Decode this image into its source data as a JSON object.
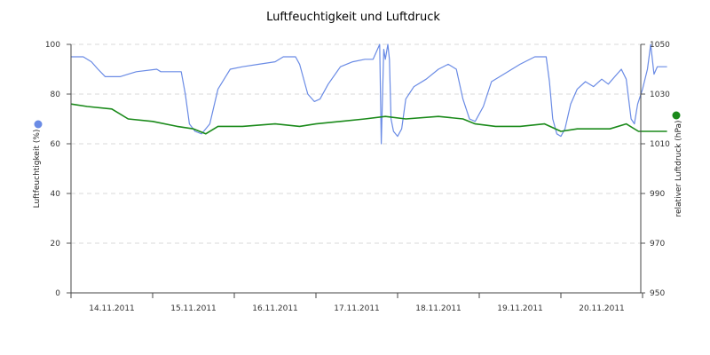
{
  "chart_data": {
    "type": "line",
    "title": "Luftfeuchtigkeit und Luftdruck",
    "x_tick_labels": [
      "14.11.2011",
      "15.11.2011",
      "16.11.2011",
      "17.11.2011",
      "18.11.2011",
      "19.11.2011",
      "20.11.2011"
    ],
    "x_range_days": [
      0,
      7
    ],
    "y_left": {
      "label": "Luftfeuchtigkeit (%)",
      "range": [
        0,
        100
      ],
      "ticks": [
        0,
        20,
        40,
        60,
        80,
        100
      ]
    },
    "y_right": {
      "label": "relativer Luftdruck (hPa)",
      "range": [
        950,
        1050
      ],
      "ticks": [
        950,
        970,
        990,
        1010,
        1030,
        1050
      ]
    },
    "grid": true,
    "series": [
      {
        "axis": "left",
        "color": "#6a8be5",
        "points": [
          [
            0.0,
            95
          ],
          [
            0.15,
            95
          ],
          [
            0.25,
            93
          ],
          [
            0.33,
            90
          ],
          [
            0.42,
            87
          ],
          [
            0.6,
            87
          ],
          [
            0.7,
            88
          ],
          [
            0.8,
            89
          ],
          [
            1.05,
            90
          ],
          [
            1.1,
            89
          ],
          [
            1.35,
            89
          ],
          [
            1.4,
            80
          ],
          [
            1.45,
            68
          ],
          [
            1.52,
            65
          ],
          [
            1.6,
            64
          ],
          [
            1.7,
            68
          ],
          [
            1.8,
            82
          ],
          [
            1.95,
            90
          ],
          [
            2.1,
            91
          ],
          [
            2.3,
            92
          ],
          [
            2.5,
            93
          ],
          [
            2.6,
            95
          ],
          [
            2.75,
            95
          ],
          [
            2.8,
            92
          ],
          [
            2.9,
            80
          ],
          [
            2.98,
            77
          ],
          [
            3.05,
            78
          ],
          [
            3.15,
            84
          ],
          [
            3.3,
            91
          ],
          [
            3.45,
            93
          ],
          [
            3.6,
            94
          ],
          [
            3.7,
            94
          ],
          [
            3.78,
            100
          ],
          [
            3.8,
            60
          ],
          [
            3.83,
            98
          ],
          [
            3.85,
            94
          ],
          [
            3.88,
            100
          ],
          [
            3.9,
            94
          ],
          [
            3.92,
            70
          ],
          [
            3.95,
            65
          ],
          [
            4.0,
            63
          ],
          [
            4.05,
            66
          ],
          [
            4.1,
            78
          ],
          [
            4.2,
            83
          ],
          [
            4.35,
            86
          ],
          [
            4.5,
            90
          ],
          [
            4.62,
            92
          ],
          [
            4.72,
            90
          ],
          [
            4.8,
            78
          ],
          [
            4.88,
            70
          ],
          [
            4.95,
            69
          ],
          [
            5.05,
            75
          ],
          [
            5.15,
            85
          ],
          [
            5.3,
            88
          ],
          [
            5.5,
            92
          ],
          [
            5.68,
            95
          ],
          [
            5.82,
            95
          ],
          [
            5.86,
            85
          ],
          [
            5.9,
            70
          ],
          [
            5.95,
            64
          ],
          [
            6.0,
            63
          ],
          [
            6.05,
            66
          ],
          [
            6.12,
            76
          ],
          [
            6.2,
            82
          ],
          [
            6.3,
            85
          ],
          [
            6.4,
            83
          ],
          [
            6.5,
            86
          ],
          [
            6.58,
            84
          ],
          [
            6.66,
            87
          ],
          [
            6.74,
            90
          ],
          [
            6.8,
            86
          ],
          [
            6.86,
            70
          ],
          [
            6.9,
            68
          ],
          [
            6.94,
            76
          ],
          [
            7.0,
            82
          ],
          [
            7.06,
            90
          ],
          [
            7.1,
            100
          ],
          [
            7.14,
            88
          ],
          [
            7.18,
            91
          ],
          [
            7.3,
            91
          ]
        ]
      },
      {
        "axis": "right",
        "color": "#1a8a1a",
        "points": [
          [
            0.0,
            1026
          ],
          [
            0.2,
            1025
          ],
          [
            0.5,
            1024
          ],
          [
            0.7,
            1020
          ],
          [
            1.0,
            1019
          ],
          [
            1.3,
            1017
          ],
          [
            1.5,
            1016
          ],
          [
            1.65,
            1014
          ],
          [
            1.8,
            1017
          ],
          [
            2.1,
            1017
          ],
          [
            2.5,
            1018
          ],
          [
            2.8,
            1017
          ],
          [
            3.0,
            1018
          ],
          [
            3.3,
            1019
          ],
          [
            3.6,
            1020
          ],
          [
            3.85,
            1021
          ],
          [
            4.1,
            1020
          ],
          [
            4.5,
            1021
          ],
          [
            4.8,
            1020
          ],
          [
            4.95,
            1018
          ],
          [
            5.2,
            1017
          ],
          [
            5.5,
            1017
          ],
          [
            5.8,
            1018
          ],
          [
            6.0,
            1015
          ],
          [
            6.2,
            1016
          ],
          [
            6.6,
            1016
          ],
          [
            6.8,
            1018
          ],
          [
            6.95,
            1015
          ],
          [
            7.1,
            1015
          ],
          [
            7.3,
            1015
          ]
        ]
      }
    ]
  }
}
